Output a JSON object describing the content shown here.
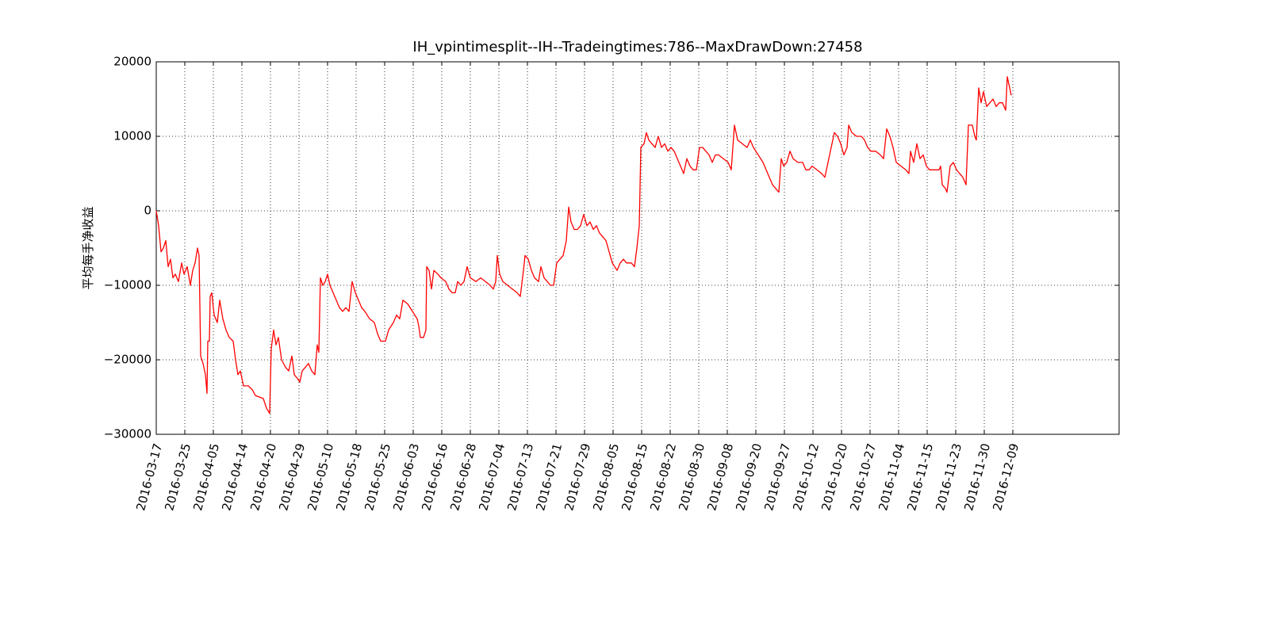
{
  "chart_data": {
    "type": "line",
    "title": "IH_vpintimesplit--IH--Tradeingtimes:786--MaxDrawDown:27458",
    "y_label": "平均每手净收益",
    "color": "#ff0000",
    "grid": true,
    "xlim": [
      0,
      1214
    ],
    "ylim": [
      -30000,
      20000
    ],
    "yticks": [
      {
        "value": -30000,
        "label": "−30000"
      },
      {
        "value": -20000,
        "label": "−20000"
      },
      {
        "value": -10000,
        "label": "−10000"
      },
      0,
      10000,
      20000
    ],
    "xticks": [
      {
        "value": 0,
        "label": "2016-03-17"
      },
      {
        "value": 36,
        "label": "2016-03-25"
      },
      {
        "value": 72,
        "label": "2016-04-05"
      },
      {
        "value": 108,
        "label": "2016-04-14"
      },
      {
        "value": 144,
        "label": "2016-04-20"
      },
      {
        "value": 180,
        "label": "2016-04-29"
      },
      {
        "value": 216,
        "label": "2016-05-10"
      },
      {
        "value": 252,
        "label": "2016-05-18"
      },
      {
        "value": 288,
        "label": "2016-05-25"
      },
      {
        "value": 324,
        "label": "2016-06-03"
      },
      {
        "value": 360,
        "label": "2016-06-16"
      },
      {
        "value": 396,
        "label": "2016-06-28"
      },
      {
        "value": 432,
        "label": "2016-07-04"
      },
      {
        "value": 468,
        "label": "2016-07-13"
      },
      {
        "value": 504,
        "label": "2016-07-21"
      },
      {
        "value": 540,
        "label": "2016-07-29"
      },
      {
        "value": 576,
        "label": "2016-08-05"
      },
      {
        "value": 612,
        "label": "2016-08-15"
      },
      {
        "value": 648,
        "label": "2016-08-22"
      },
      {
        "value": 684,
        "label": "2016-08-30"
      },
      {
        "value": 720,
        "label": "2016-09-08"
      },
      {
        "value": 756,
        "label": "2016-09-20"
      },
      {
        "value": 792,
        "label": "2016-09-27"
      },
      {
        "value": 828,
        "label": "2016-10-12"
      },
      {
        "value": 864,
        "label": "2016-10-20"
      },
      {
        "value": 900,
        "label": "2016-10-27"
      },
      {
        "value": 936,
        "label": "2016-11-04"
      },
      {
        "value": 972,
        "label": "2016-11-15"
      },
      {
        "value": 1008,
        "label": "2016-11-23"
      },
      {
        "value": 1044,
        "label": "2016-11-30"
      },
      {
        "value": 1080,
        "label": "2016-12-09"
      }
    ],
    "x": [
      0,
      3,
      6,
      9,
      12,
      15,
      18,
      21,
      24,
      28,
      32,
      35,
      39,
      43,
      46,
      49,
      52,
      54,
      56,
      59,
      62,
      64,
      65,
      67,
      68,
      70,
      73,
      77,
      80,
      84,
      88,
      92,
      97,
      100,
      103,
      106,
      110,
      116,
      121,
      125,
      130,
      135,
      139,
      143,
      145,
      148,
      151,
      154,
      158,
      163,
      167,
      171,
      174,
      178,
      181,
      184,
      188,
      192,
      196,
      200,
      203,
      205,
      207,
      210,
      213,
      216,
      219,
      223,
      227,
      231,
      235,
      239,
      243,
      247,
      251,
      255,
      259,
      263,
      269,
      275,
      279,
      283,
      289,
      293,
      299,
      303,
      307,
      311,
      317,
      323,
      329,
      331,
      333,
      337,
      340,
      341,
      344,
      347,
      350,
      355,
      359,
      365,
      369,
      373,
      377,
      380,
      384,
      388,
      392,
      396,
      403,
      409,
      415,
      421,
      425,
      428,
      430,
      433,
      437,
      443,
      449,
      455,
      459,
      463,
      465,
      469,
      473,
      477,
      482,
      485,
      489,
      493,
      497,
      501,
      505,
      509,
      513,
      517,
      520,
      523,
      527,
      531,
      535,
      539,
      543,
      547,
      551,
      555,
      559,
      563,
      567,
      571,
      575,
      581,
      585,
      589,
      593,
      599,
      603,
      606,
      609,
      611,
      615,
      618,
      621,
      625,
      629,
      633,
      637,
      641,
      645,
      649,
      653,
      657,
      661,
      665,
      669,
      673,
      677,
      681,
      685,
      689,
      693,
      697,
      701,
      705,
      709,
      715,
      721,
      725,
      729,
      733,
      739,
      745,
      749,
      753,
      759,
      765,
      769,
      773,
      777,
      781,
      785,
      788,
      791,
      795,
      799,
      803,
      809,
      815,
      819,
      823,
      827,
      833,
      839,
      843,
      847,
      851,
      855,
      859,
      863,
      867,
      871,
      873,
      877,
      883,
      889,
      893,
      897,
      901,
      907,
      913,
      917,
      921,
      925,
      929,
      933,
      939,
      945,
      949,
      951,
      955,
      959,
      963,
      967,
      971,
      975,
      981,
      987,
      989,
      991,
      995,
      997,
      1001,
      1005,
      1009,
      1013,
      1017,
      1021,
      1024,
      1029,
      1032,
      1034,
      1037,
      1040,
      1043,
      1047,
      1051,
      1055,
      1059,
      1063,
      1067,
      1071,
      1073,
      1076,
      1078
    ],
    "values": [
      0,
      -2000,
      -5500,
      -5000,
      -4000,
      -7500,
      -6500,
      -9000,
      -8500,
      -9500,
      -7000,
      -8500,
      -7500,
      -10000,
      -8000,
      -7000,
      -5000,
      -6000,
      -19500,
      -20500,
      -22000,
      -24500,
      -17500,
      -17500,
      -11500,
      -11000,
      -14000,
      -15000,
      -12000,
      -14500,
      -16000,
      -17000,
      -17500,
      -20000,
      -22000,
      -21500,
      -23500,
      -23500,
      -24000,
      -24800,
      -25000,
      -25200,
      -26500,
      -27200,
      -18500,
      -16000,
      -18000,
      -17000,
      -20000,
      -21000,
      -21500,
      -19500,
      -22000,
      -22500,
      -23000,
      -21500,
      -21000,
      -20500,
      -21500,
      -22000,
      -18000,
      -19000,
      -9000,
      -10000,
      -9500,
      -8500,
      -10000,
      -11000,
      -12000,
      -13000,
      -13500,
      -13000,
      -13500,
      -9500,
      -11000,
      -12000,
      -13000,
      -13500,
      -14500,
      -15000,
      -16500,
      -17500,
      -17500,
      -16000,
      -15000,
      -14000,
      -14500,
      -12000,
      -12500,
      -13500,
      -14500,
      -15500,
      -17000,
      -17000,
      -16000,
      -7500,
      -8000,
      -10500,
      -8000,
      -8500,
      -9000,
      -9500,
      -10500,
      -11000,
      -11000,
      -9500,
      -10000,
      -9500,
      -7500,
      -9000,
      -9500,
      -9000,
      -9500,
      -10000,
      -10500,
      -9500,
      -6000,
      -8500,
      -9500,
      -10000,
      -10500,
      -11000,
      -11500,
      -8000,
      -6000,
      -6500,
      -8000,
      -9000,
      -9500,
      -7500,
      -9000,
      -9500,
      -10000,
      -10000,
      -7000,
      -6500,
      -6000,
      -4000,
      500,
      -1500,
      -2500,
      -2500,
      -2000,
      -500,
      -2000,
      -1500,
      -2500,
      -2000,
      -3000,
      -3500,
      -4000,
      -5500,
      -7000,
      -8000,
      -7000,
      -6500,
      -7000,
      -7000,
      -7500,
      -5000,
      -2000,
      8500,
      9000,
      10500,
      9500,
      9000,
      8500,
      10000,
      8500,
      9000,
      8000,
      8500,
      8000,
      7000,
      6000,
      5000,
      7000,
      6000,
      5500,
      5500,
      8500,
      8500,
      8000,
      7500,
      6500,
      7500,
      7500,
      7000,
      6500,
      5500,
      11500,
      9500,
      9000,
      8500,
      9500,
      8500,
      7500,
      6500,
      5500,
      4500,
      3500,
      3000,
      2500,
      7000,
      6000,
      6500,
      8000,
      7000,
      6500,
      6500,
      5500,
      5500,
      6000,
      5500,
      5000,
      4500,
      6500,
      8500,
      10500,
      10000,
      9000,
      7500,
      8500,
      11500,
      10500,
      10000,
      10000,
      9500,
      8500,
      8000,
      8000,
      7500,
      7000,
      11000,
      10000,
      8500,
      6500,
      6000,
      5500,
      5000,
      8000,
      6500,
      9000,
      7000,
      7500,
      6000,
      5500,
      5500,
      5500,
      6000,
      3500,
      3000,
      2500,
      6000,
      6500,
      5500,
      5000,
      4500,
      3500,
      11500,
      11500,
      10000,
      9500,
      16500,
      14500,
      16000,
      14000,
      14500,
      15000,
      14000,
      14500,
      14500,
      13500,
      18000,
      16500,
      15500
    ]
  }
}
